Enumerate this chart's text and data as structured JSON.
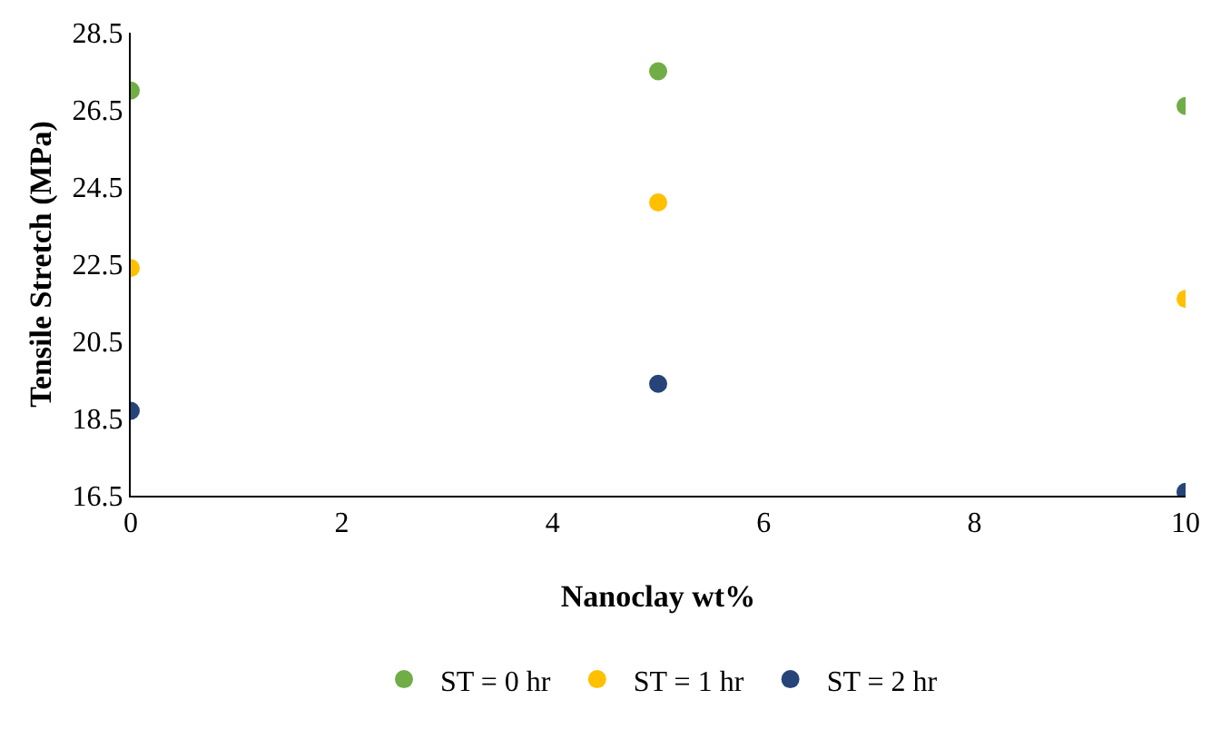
{
  "chart_data": {
    "type": "scatter",
    "xlabel": "Nanoclay wt%",
    "ylabel": "Tensile Stretch (MPa)",
    "x": [
      0,
      5,
      10
    ],
    "series": [
      {
        "name": "ST = 0 hr",
        "color": "#70ad47",
        "values": [
          27.0,
          27.5,
          26.6
        ]
      },
      {
        "name": "ST = 1 hr",
        "color": "#ffc000",
        "values": [
          22.4,
          24.1,
          21.6
        ]
      },
      {
        "name": "ST = 2 hr",
        "color": "#264478",
        "values": [
          18.7,
          19.4,
          16.6
        ]
      }
    ],
    "xlim": [
      0,
      10
    ],
    "xticks": [
      0,
      2,
      4,
      6,
      8,
      10
    ],
    "ylim": [
      16.5,
      28.5
    ],
    "yticks": [
      16.5,
      18.5,
      20.5,
      22.5,
      24.5,
      26.5,
      28.5
    ],
    "grid": false,
    "legend": "bottom",
    "marker": "circle"
  }
}
